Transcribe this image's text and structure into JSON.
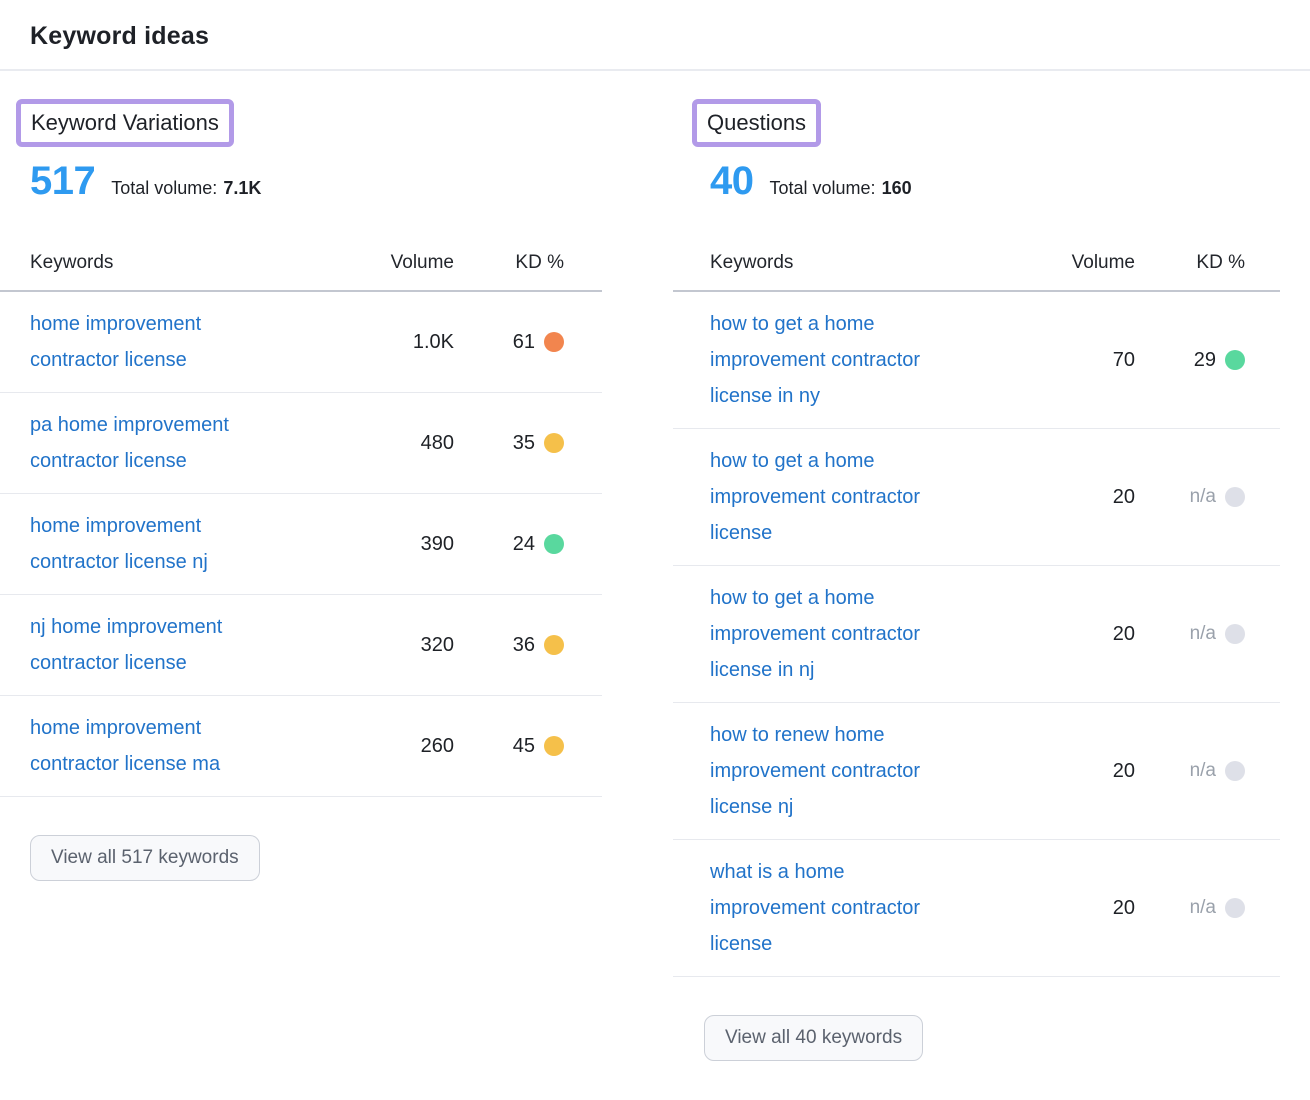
{
  "page": {
    "title": "Keyword ideas"
  },
  "colors": {
    "accent_blue": "#2e9af0",
    "link_blue": "#2173c9",
    "highlight_purple": "#b29ae8",
    "kd_easy": "#59d89e",
    "kd_possible": "#f5c04a",
    "kd_hard": "#f2854e",
    "kd_na": "#dee0e8"
  },
  "sections": [
    {
      "label": "Keyword Variations",
      "count": "517",
      "total_volume_label": "Total volume:",
      "total_volume": "7.1K",
      "columns": {
        "keywords": "Keywords",
        "volume": "Volume",
        "kd": "KD %"
      },
      "rows": [
        {
          "keyword": "home improvement contractor license",
          "volume": "1.0K",
          "kd": "61",
          "kd_color": "#f2854e"
        },
        {
          "keyword": "pa home improvement contractor license",
          "volume": "480",
          "kd": "35",
          "kd_color": "#f5c04a"
        },
        {
          "keyword": "home improvement contractor license nj",
          "volume": "390",
          "kd": "24",
          "kd_color": "#59d89e"
        },
        {
          "keyword": "nj home improvement contractor license",
          "volume": "320",
          "kd": "36",
          "kd_color": "#f5c04a"
        },
        {
          "keyword": "home improvement contractor license ma",
          "volume": "260",
          "kd": "45",
          "kd_color": "#f5c04a"
        }
      ],
      "view_all_label": "View all 517 keywords"
    },
    {
      "label": "Questions",
      "count": "40",
      "total_volume_label": "Total volume:",
      "total_volume": "160",
      "columns": {
        "keywords": "Keywords",
        "volume": "Volume",
        "kd": "KD %"
      },
      "rows": [
        {
          "keyword": "how to get a home improvement contractor license in ny",
          "volume": "70",
          "kd": "29",
          "kd_color": "#59d89e"
        },
        {
          "keyword": "how to get a home improvement contractor license",
          "volume": "20",
          "kd": "n/a",
          "kd_color": "#dee0e8"
        },
        {
          "keyword": "how to get a home improvement contractor license in nj",
          "volume": "20",
          "kd": "n/a",
          "kd_color": "#dee0e8"
        },
        {
          "keyword": "how to renew home improvement contractor license nj",
          "volume": "20",
          "kd": "n/a",
          "kd_color": "#dee0e8"
        },
        {
          "keyword": "what is a home improvement contractor license",
          "volume": "20",
          "kd": "n/a",
          "kd_color": "#dee0e8"
        }
      ],
      "view_all_label": "View all 40 keywords"
    }
  ]
}
